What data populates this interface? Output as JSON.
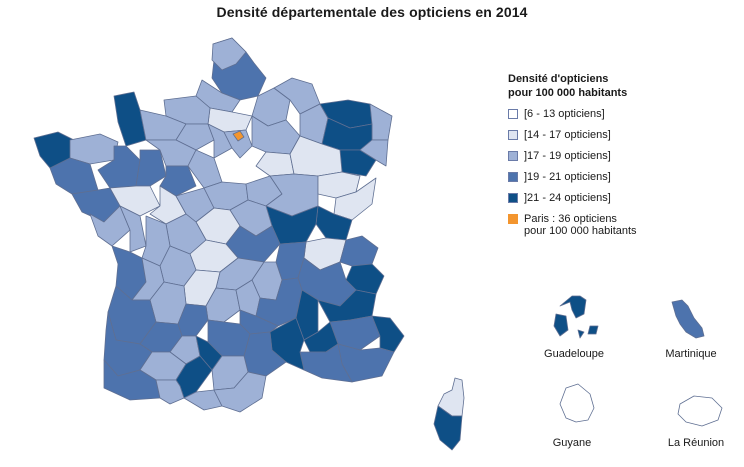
{
  "title": "Densité départementale des opticiens en 2014",
  "legend": {
    "title_line1": "Densité d'opticiens",
    "title_line2": "pour 100 000 habitants",
    "items": [
      {
        "label": "[6 - 13 opticiens]",
        "color": "#ffffff"
      },
      {
        "label": "[14 - 17 opticiens]",
        "color": "#dfe5f1"
      },
      {
        "label": "]17 - 19 opticiens]",
        "color": "#9eb1d6"
      },
      {
        "label": "]19 - 21 opticiens]",
        "color": "#4d73ad"
      },
      {
        "label": "]21 - 24 opticiens]",
        "color": "#0e4f86"
      },
      {
        "label": "Paris : 36 opticiens\npour 100 000 habitants",
        "color": "#f3952e"
      }
    ]
  },
  "overseas": [
    {
      "name": "Guadeloupe"
    },
    {
      "name": "Martinique"
    },
    {
      "name": "Guyane"
    },
    {
      "name": "La Réunion"
    }
  ],
  "colors": {
    "c1": "#ffffff",
    "c2": "#dfe5f1",
    "c3": "#9eb1d6",
    "c4": "#4d73ad",
    "c5": "#0e4f86",
    "paris": "#f3952e",
    "border": "#5f6f92"
  }
}
